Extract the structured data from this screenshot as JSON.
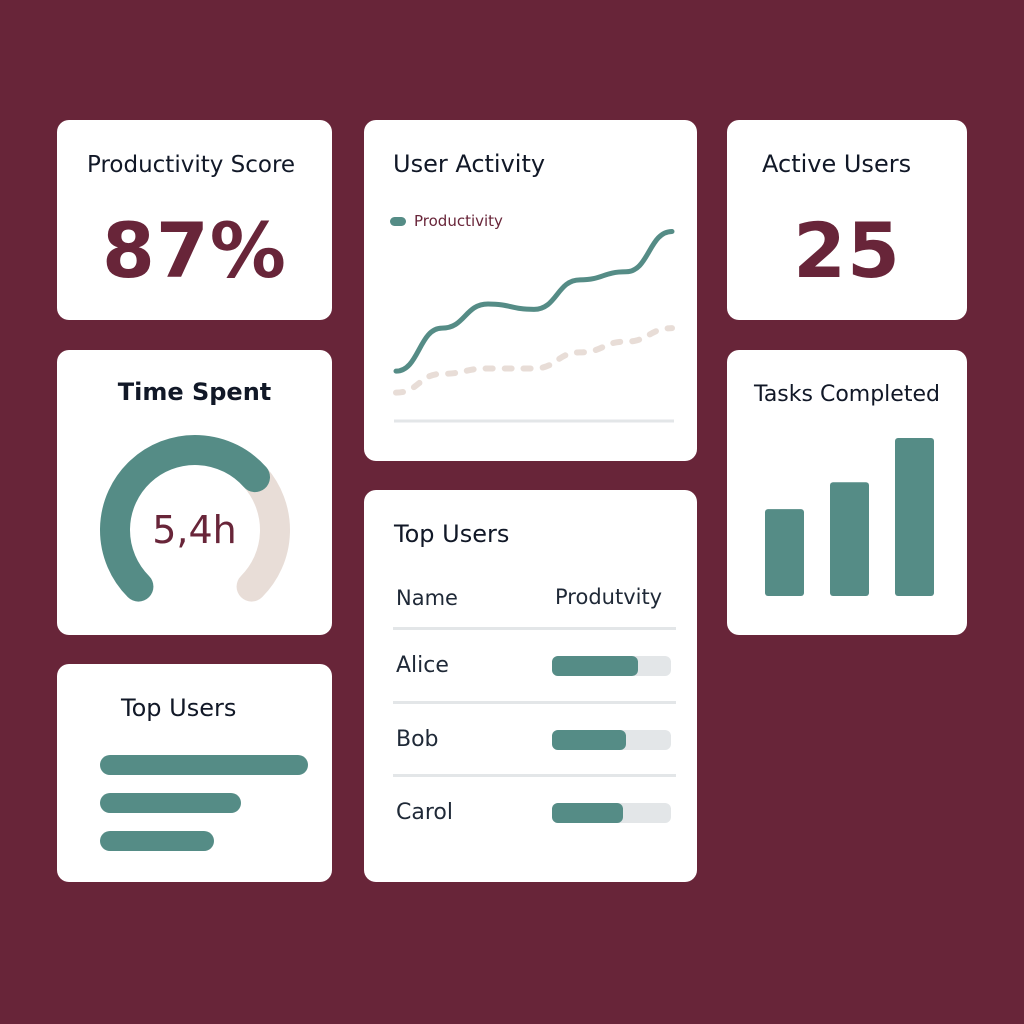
{
  "colors": {
    "background": "#682539",
    "accent": "#558c86",
    "secondary": "#e8ddd7",
    "value": "#682539"
  },
  "productivity_score": {
    "title": "Productivity Score",
    "value": "87%"
  },
  "user_activity": {
    "title": "User Activity",
    "legend": "Productivity",
    "chart_data": {
      "type": "line",
      "series": [
        {
          "name": "Productivity",
          "values": [
            10,
            26,
            35,
            33,
            44,
            47,
            62
          ],
          "style": "solid"
        },
        {
          "values": [
            2,
            9,
            11,
            11,
            17,
            21,
            26
          ],
          "style": "dotted"
        }
      ],
      "ylim": [
        0,
        70
      ],
      "grid": false
    }
  },
  "active_users": {
    "title": "Active Users",
    "value": "25"
  },
  "time_spent": {
    "title": "Time Spent",
    "value": "5,4h",
    "gauge_fraction": 0.68
  },
  "tasks_completed": {
    "title": "Tasks Completed",
    "chart_data": {
      "type": "bar",
      "values": [
        55,
        72,
        100
      ],
      "ylim": [
        0,
        100
      ]
    }
  },
  "top_users_small": {
    "title": "Top Users",
    "bars": [
      1.0,
      0.68,
      0.55
    ]
  },
  "top_users_table": {
    "title": "Top Users",
    "columns": [
      "Name",
      "Produtvity"
    ],
    "rows": [
      {
        "name": "Alice",
        "value": 0.72
      },
      {
        "name": "Bob",
        "value": 0.62
      },
      {
        "name": "Carol",
        "value": 0.6
      }
    ]
  }
}
